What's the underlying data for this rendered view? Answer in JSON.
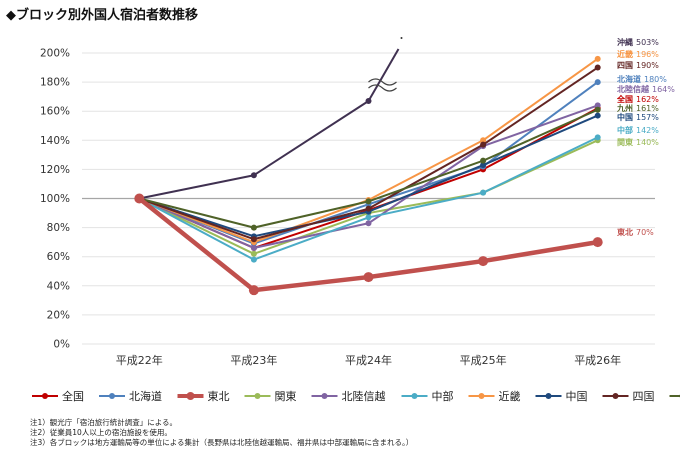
{
  "title": "◆ブロック別外国人宿泊者数推移",
  "notes": [
    "注1）観光庁「宿泊旅行統計調査」による。",
    "注2）従業員10人以上の宿泊施設を使用。",
    "注3）各ブロックは地方運輸局等の単位による集計（長野県は北陸信越運輸局、福井県は中部運輸局に含まれる。）"
  ],
  "chart_data": {
    "type": "line",
    "title": "◆ブロック別外国人宿泊者数推移",
    "xlabel": "",
    "ylabel": "",
    "categories": [
      "平成22年",
      "平成23年",
      "平成24年",
      "平成25年",
      "平成26年"
    ],
    "ylim": [
      0,
      200
    ],
    "yticks": [
      0,
      20,
      40,
      60,
      80,
      100,
      120,
      140,
      160,
      180,
      200
    ],
    "ytick_labels": [
      "0%",
      "20%",
      "40%",
      "60%",
      "80%",
      "100%",
      "120%",
      "140%",
      "160%",
      "180%",
      "200%"
    ],
    "reference_line": 100,
    "break_marker": true,
    "series": [
      {
        "name": "全国",
        "color": "#c00000",
        "values": [
          100,
          66,
          92,
          120,
          162
        ],
        "end_label": "全国 162%"
      },
      {
        "name": "北海道",
        "color": "#4f81bd",
        "values": [
          100,
          69,
          96,
          122,
          180
        ],
        "end_label": "北海道 180%"
      },
      {
        "name": "東北",
        "color": "#c0504d",
        "values": [
          100,
          37,
          46,
          57,
          70
        ],
        "end_label": "東北 70%",
        "thick": true
      },
      {
        "name": "関東",
        "color": "#9bbb59",
        "values": [
          100,
          62,
          90,
          104,
          140
        ],
        "end_label": "関東 140%"
      },
      {
        "name": "北陸信越",
        "color": "#8064a2",
        "values": [
          100,
          66,
          83,
          136,
          164
        ],
        "end_label": "北陸信越 164%"
      },
      {
        "name": "中部",
        "color": "#4bacc6",
        "values": [
          100,
          58,
          87,
          104,
          142
        ],
        "end_label": "中部 142%"
      },
      {
        "name": "近畿",
        "color": "#f79646",
        "values": [
          100,
          70,
          99,
          140,
          196
        ],
        "end_label": "近畿 196%"
      },
      {
        "name": "中国",
        "color": "#1f497d",
        "values": [
          100,
          74,
          91,
          123,
          157
        ],
        "end_label": "中国 157%"
      },
      {
        "name": "四国",
        "color": "#632523",
        "values": [
          100,
          72,
          93,
          137,
          190
        ],
        "end_label": "四国 190%"
      },
      {
        "name": "九州",
        "color": "#4f6228",
        "values": [
          100,
          80,
          98,
          126,
          161
        ],
        "end_label": "九州 161%"
      },
      {
        "name": "沖縄",
        "color": "#403151",
        "values": [
          100,
          116,
          167,
          null,
          null
        ],
        "end_label": "沖縄 503%"
      }
    ]
  }
}
